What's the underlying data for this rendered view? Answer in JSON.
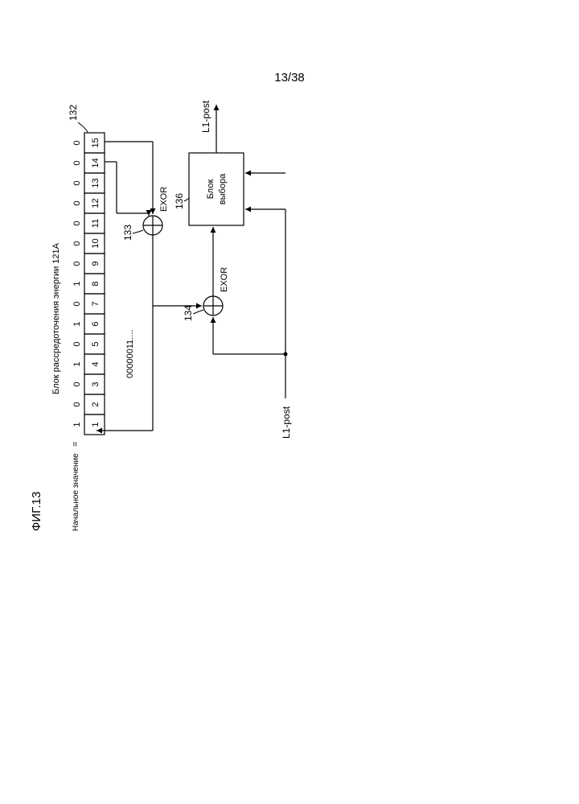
{
  "page_number": "13/38",
  "figure_label": "ФИГ.13",
  "block_title": "Блок рассредоточения энергии 121A",
  "initial_value_label": "Начальное значение",
  "equals": "=",
  "register_bits": [
    "1",
    "0",
    "0",
    "1",
    "0",
    "1",
    "0",
    "1",
    "0",
    "0",
    "0",
    "0",
    "0",
    "0",
    "0"
  ],
  "register_indices": [
    "1",
    "2",
    "3",
    "4",
    "5",
    "6",
    "7",
    "8",
    "9",
    "10",
    "11",
    "12",
    "13",
    "14",
    "15"
  ],
  "prbs_output": "00000011....",
  "ref_132": "132",
  "ref_133": "133",
  "ref_134": "134",
  "ref_136": "136",
  "exor_label": "EXOR",
  "selector_label_line1": "Блок",
  "selector_label_line2": "выбора",
  "input_signal": "L1-post",
  "output_signal": "L1-post",
  "colors": {
    "stroke": "#000000",
    "bg": "#ffffff",
    "text": "#000000"
  },
  "font_size_small": 11,
  "font_size_med": 13,
  "font_size_large": 15,
  "line_width": 1.2
}
